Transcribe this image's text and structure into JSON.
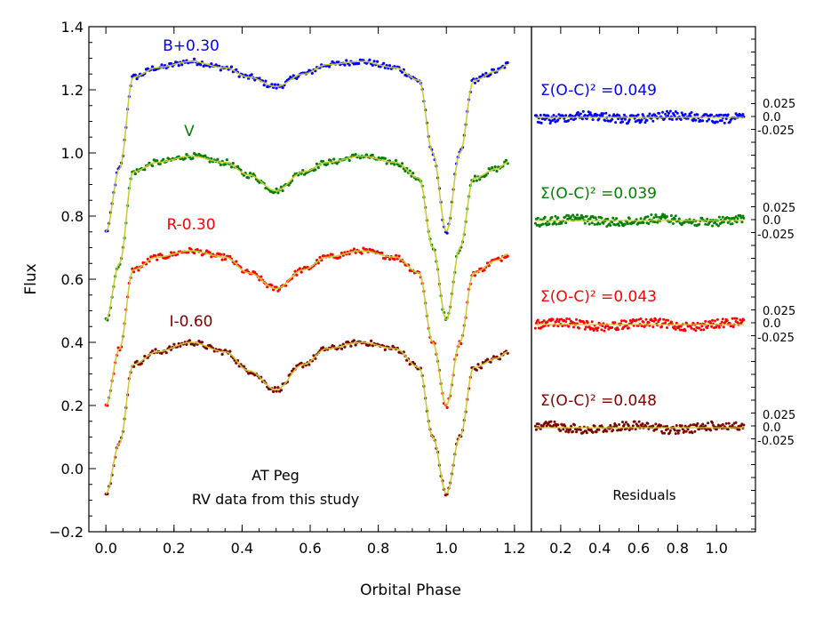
{
  "chart_data": [
    {
      "type": "scatter",
      "panel": "light curves",
      "xlabel": "Orbital Phase",
      "ylabel": "Flux",
      "xlim": [
        -0.05,
        1.25
      ],
      "ylim": [
        -0.2,
        1.4
      ],
      "x_ticks": [
        "0.0",
        "0.2",
        "0.4",
        "0.6",
        "0.8",
        "1.0",
        "1.2"
      ],
      "y_ticks": [
        "−0.2",
        "0.0",
        "0.2",
        "0.4",
        "0.6",
        "0.8",
        "1.0",
        "1.2",
        "1.4"
      ],
      "annotation_title": "AT Peg",
      "annotation_subtitle": "RV data from this study",
      "fit_color": "#c8c832",
      "series": [
        {
          "name": "B+0.30",
          "color": "#0000ff",
          "offset": 0.3,
          "points": [
            [
              0.0,
              0.75
            ],
            [
              0.04,
              0.95
            ],
            [
              0.08,
              1.24
            ],
            [
              0.15,
              1.27
            ],
            [
              0.25,
              1.29
            ],
            [
              0.35,
              1.27
            ],
            [
              0.42,
              1.24
            ],
            [
              0.5,
              1.21
            ],
            [
              0.58,
              1.25
            ],
            [
              0.65,
              1.28
            ],
            [
              0.75,
              1.29
            ],
            [
              0.85,
              1.27
            ],
            [
              0.92,
              1.23
            ],
            [
              0.96,
              1.0
            ],
            [
              1.0,
              0.75
            ],
            [
              1.04,
              1.0
            ],
            [
              1.08,
              1.23
            ],
            [
              1.15,
              1.26
            ],
            [
              1.18,
              1.28
            ]
          ]
        },
        {
          "name": "V",
          "color": "#008000",
          "offset": 0.0,
          "points": [
            [
              0.0,
              0.47
            ],
            [
              0.04,
              0.65
            ],
            [
              0.08,
              0.94
            ],
            [
              0.15,
              0.97
            ],
            [
              0.25,
              0.99
            ],
            [
              0.35,
              0.97
            ],
            [
              0.42,
              0.93
            ],
            [
              0.5,
              0.88
            ],
            [
              0.58,
              0.94
            ],
            [
              0.65,
              0.97
            ],
            [
              0.75,
              0.99
            ],
            [
              0.85,
              0.97
            ],
            [
              0.92,
              0.92
            ],
            [
              0.96,
              0.7
            ],
            [
              1.0,
              0.47
            ],
            [
              1.04,
              0.7
            ],
            [
              1.08,
              0.92
            ],
            [
              1.15,
              0.95
            ],
            [
              1.18,
              0.97
            ]
          ]
        },
        {
          "name": "R-0.30",
          "color": "#ff0000",
          "offset": -0.3,
          "points": [
            [
              0.0,
              0.2
            ],
            [
              0.04,
              0.38
            ],
            [
              0.08,
              0.63
            ],
            [
              0.15,
              0.67
            ],
            [
              0.25,
              0.69
            ],
            [
              0.35,
              0.67
            ],
            [
              0.42,
              0.62
            ],
            [
              0.5,
              0.57
            ],
            [
              0.58,
              0.63
            ],
            [
              0.65,
              0.67
            ],
            [
              0.75,
              0.69
            ],
            [
              0.85,
              0.67
            ],
            [
              0.92,
              0.62
            ],
            [
              0.96,
              0.4
            ],
            [
              1.0,
              0.2
            ],
            [
              1.04,
              0.4
            ],
            [
              1.08,
              0.62
            ],
            [
              1.15,
              0.66
            ],
            [
              1.18,
              0.68
            ]
          ]
        },
        {
          "name": "I-0.60",
          "color": "#800000",
          "offset": -0.6,
          "points": [
            [
              0.0,
              -0.08
            ],
            [
              0.04,
              0.08
            ],
            [
              0.08,
              0.33
            ],
            [
              0.15,
              0.37
            ],
            [
              0.25,
              0.4
            ],
            [
              0.35,
              0.37
            ],
            [
              0.42,
              0.31
            ],
            [
              0.5,
              0.25
            ],
            [
              0.58,
              0.33
            ],
            [
              0.65,
              0.38
            ],
            [
              0.75,
              0.4
            ],
            [
              0.85,
              0.38
            ],
            [
              0.92,
              0.32
            ],
            [
              0.96,
              0.1
            ],
            [
              1.0,
              -0.08
            ],
            [
              1.04,
              0.1
            ],
            [
              1.08,
              0.32
            ],
            [
              1.15,
              0.35
            ],
            [
              1.18,
              0.37
            ]
          ]
        }
      ]
    },
    {
      "type": "scatter",
      "panel": "residuals",
      "title": "Residuals",
      "xlim": [
        0.05,
        1.2
      ],
      "x_ticks": [
        "0.2",
        "0.4",
        "0.6",
        "0.8",
        "1.0"
      ],
      "series": [
        {
          "name": "B",
          "color": "#0000ff",
          "metric_label": "Σ(O-C)² =0.049",
          "chi2": 0.049,
          "ticks": {
            "upper": "0.025",
            "zero": "0.0",
            "lower": "-0.025"
          }
        },
        {
          "name": "V",
          "color": "#008000",
          "metric_label": "Σ(O-C)² =0.039",
          "chi2": 0.039,
          "ticks": {
            "upper": "0.025",
            "zero": "0.0",
            "lower": "-0.025"
          }
        },
        {
          "name": "R",
          "color": "#ff0000",
          "metric_label": "Σ(O-C)² =0.043",
          "chi2": 0.043,
          "ticks": {
            "upper": "0.025",
            "zero": "0.0",
            "lower": "-0.025"
          }
        },
        {
          "name": "I",
          "color": "#800000",
          "metric_label": "Σ(O-C)² =0.048",
          "chi2": 0.048,
          "ticks": {
            "upper": "0.025",
            "zero": "0.0",
            "lower": "-0.025"
          }
        }
      ]
    }
  ]
}
